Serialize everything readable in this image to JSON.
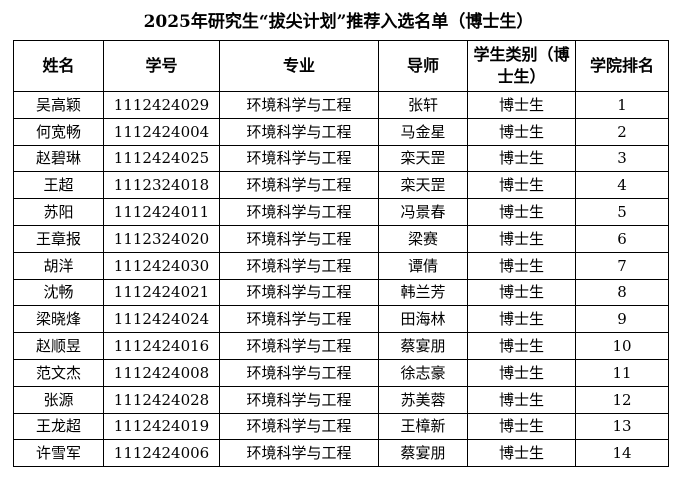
{
  "title": "2025年研究生“拔尖计划”推荐入选名单（博士生）",
  "headers": [
    "姓名",
    "学号",
    "专业",
    "导师",
    "学生类别（博士生）",
    "学院排名"
  ],
  "rows": [
    [
      "吴高颖",
      "1112424029",
      "环境科学与工程",
      "张轩",
      "博士生",
      "1"
    ],
    [
      "何宽畅",
      "1112424004",
      "环境科学与工程",
      "马金星",
      "博士生",
      "2"
    ],
    [
      "赵碧琳",
      "1112424025",
      "环境科学与工程",
      "栾天罡",
      "博士生",
      "3"
    ],
    [
      "王超",
      "1112324018",
      "环境科学与工程",
      "栾天罡",
      "博士生",
      "4"
    ],
    [
      "苏阳",
      "1112424011",
      "环境科学与工程",
      "冯景春",
      "博士生",
      "5"
    ],
    [
      "王章报",
      "1112324020",
      "环境科学与工程",
      "梁赛",
      "博士生",
      "6"
    ],
    [
      "胡洋",
      "1112424030",
      "环境科学与工程",
      "谭倩",
      "博士生",
      "7"
    ],
    [
      "沈畅",
      "1112424021",
      "环境科学与工程",
      "韩兰芳",
      "博士生",
      "8"
    ],
    [
      "梁晓烽",
      "1112424024",
      "环境科学与工程",
      "田海林",
      "博士生",
      "9"
    ],
    [
      "赵顺昱",
      "1112424016",
      "环境科学与工程",
      "蔡宴朋",
      "博士生",
      "10"
    ],
    [
      "范文杰",
      "1112424008",
      "环境科学与工程",
      "徐志豪",
      "博士生",
      "11"
    ],
    [
      "张源",
      "1112424028",
      "环境科学与工程",
      "苏美蓉",
      "博士生",
      "12"
    ],
    [
      "王龙超",
      "1112424019",
      "环境科学与工程",
      "王樟新",
      "博士生",
      "13"
    ],
    [
      "许雪军",
      "1112424006",
      "环境科学与工程",
      "蔡宴朋",
      "博士生",
      "14"
    ]
  ]
}
